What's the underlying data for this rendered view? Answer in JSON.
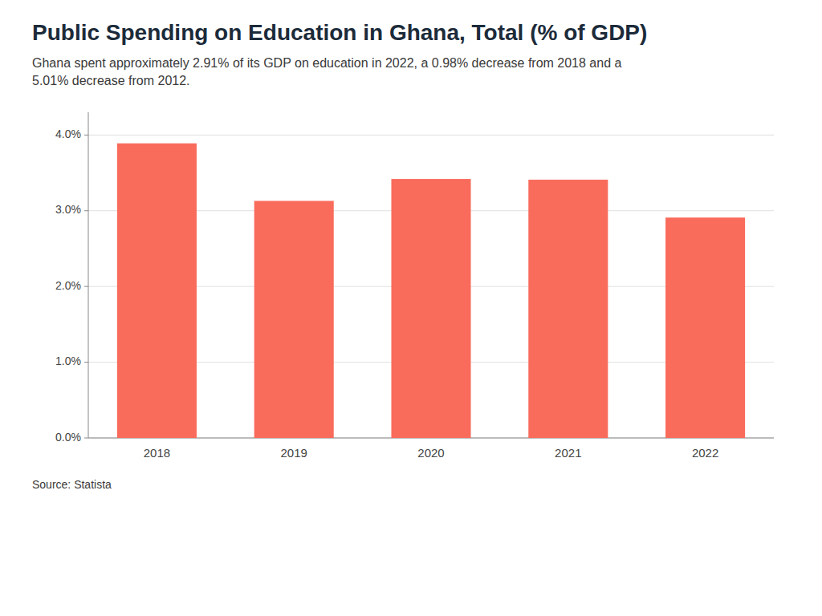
{
  "chart_data": {
    "type": "bar",
    "title": "Public Spending on Education in Ghana, Total (% of GDP)",
    "subtitle": "Ghana spent approximately 2.91% of its GDP on education in 2022, a 0.98% decrease from 2018 and a 5.01% decrease from 2012.",
    "source": "Source: Statista",
    "categories": [
      "2018",
      "2019",
      "2020",
      "2021",
      "2022"
    ],
    "values": [
      3.89,
      3.13,
      3.42,
      3.41,
      2.91
    ],
    "color": "#F96B5B",
    "ylim": [
      0,
      4.3
    ],
    "yticks": [
      {
        "value": 0.0,
        "label": "0.0%"
      },
      {
        "value": 1.0,
        "label": "1.0%"
      },
      {
        "value": 2.0,
        "label": "2.0%"
      },
      {
        "value": 3.0,
        "label": "3.0%"
      },
      {
        "value": 4.0,
        "label": "4.0%"
      }
    ],
    "grid": true
  }
}
